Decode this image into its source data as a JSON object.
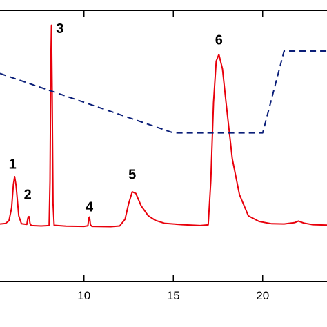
{
  "chart_data": {
    "type": "line",
    "title": "",
    "xlabel": "",
    "ylabel": "",
    "xlim": [
      5.3,
      23.6
    ],
    "ylim": [
      0,
      100
    ],
    "x_ticks": [
      10,
      15,
      20
    ],
    "x_tick_labels": [
      "10",
      "15",
      "20"
    ],
    "grid": false,
    "series": [
      {
        "color": "#e8000b",
        "style": "solid",
        "points": [
          [
            5.3,
            10.9
          ],
          [
            5.6,
            11.1
          ],
          [
            5.8,
            12.3
          ],
          [
            5.95,
            18.0
          ],
          [
            6.05,
            28.5
          ],
          [
            6.12,
            32.0
          ],
          [
            6.2,
            28.0
          ],
          [
            6.35,
            14.5
          ],
          [
            6.5,
            11.0
          ],
          [
            6.8,
            10.7
          ],
          [
            6.86,
            13.5
          ],
          [
            6.92,
            14.2
          ],
          [
            6.98,
            11.2
          ],
          [
            7.05,
            10.2
          ],
          [
            7.6,
            10.0
          ],
          [
            8.05,
            10.2
          ],
          [
            8.1,
            30.0
          ],
          [
            8.15,
            85.0
          ],
          [
            8.18,
            99.5
          ],
          [
            8.22,
            70.0
          ],
          [
            8.27,
            20.0
          ],
          [
            8.33,
            10.3
          ],
          [
            9.0,
            9.9
          ],
          [
            10.0,
            9.8
          ],
          [
            10.22,
            10.1
          ],
          [
            10.27,
            13.5
          ],
          [
            10.31,
            14.0
          ],
          [
            10.36,
            10.5
          ],
          [
            10.45,
            9.8
          ],
          [
            11.5,
            9.7
          ],
          [
            12.0,
            10.0
          ],
          [
            12.3,
            13.0
          ],
          [
            12.5,
            20.0
          ],
          [
            12.7,
            25.2
          ],
          [
            12.9,
            24.5
          ],
          [
            13.2,
            19.0
          ],
          [
            13.6,
            14.5
          ],
          [
            14.0,
            12.5
          ],
          [
            14.5,
            11.2
          ],
          [
            15.5,
            10.6
          ],
          [
            16.5,
            10.2
          ],
          [
            16.95,
            10.5
          ],
          [
            17.1,
            30.0
          ],
          [
            17.25,
            65.0
          ],
          [
            17.4,
            83.5
          ],
          [
            17.55,
            86.5
          ],
          [
            17.75,
            80.0
          ],
          [
            17.95,
            65.0
          ],
          [
            18.3,
            40.0
          ],
          [
            18.7,
            24.0
          ],
          [
            19.2,
            14.5
          ],
          [
            19.8,
            12.0
          ],
          [
            20.5,
            11.0
          ],
          [
            21.2,
            10.9
          ],
          [
            21.8,
            11.5
          ],
          [
            22.0,
            12.2
          ],
          [
            22.3,
            11.3
          ],
          [
            22.8,
            10.6
          ],
          [
            23.6,
            10.4
          ]
        ]
      },
      {
        "color": "#0a1e78",
        "style": "dashed",
        "points": [
          [
            5.3,
            78.0
          ],
          [
            15.0,
            51.5
          ],
          [
            20.0,
            51.5
          ],
          [
            21.2,
            88.0
          ],
          [
            23.6,
            88.0
          ]
        ]
      }
    ],
    "annotations": [
      {
        "text": "1",
        "x": 6.0,
        "y": 35.5
      },
      {
        "text": "2",
        "x": 6.85,
        "y": 22.0
      },
      {
        "text": "3",
        "x": 8.65,
        "y": 96.0
      },
      {
        "text": "4",
        "x": 10.3,
        "y": 16.5
      },
      {
        "text": "5",
        "x": 12.7,
        "y": 31.0
      },
      {
        "text": "6",
        "x": 17.55,
        "y": 91.0
      }
    ]
  }
}
